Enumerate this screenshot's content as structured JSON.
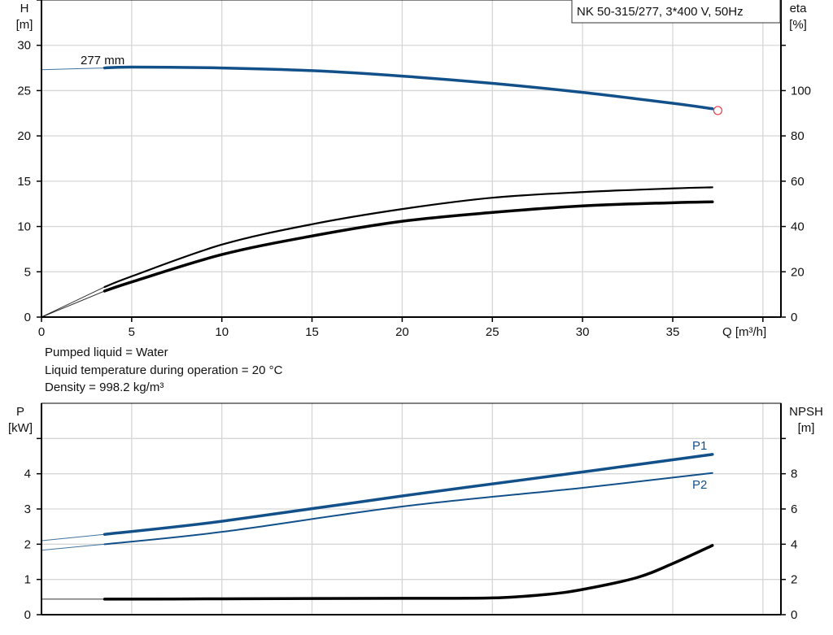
{
  "chart_data": [
    {
      "type": "line",
      "title": "NK 50-315/277, 3*400 V, 50Hz",
      "xlabel": "Q [m³/h]",
      "ylabel": "H",
      "yunit": "[m]",
      "y2label": "eta",
      "y2unit": "[%]",
      "xlim": [
        0,
        41
      ],
      "ylim": [
        0,
        35
      ],
      "y2lim": [
        0,
        140
      ],
      "xticks": [
        "0",
        "5",
        "10",
        "15",
        "20",
        "25",
        "30",
        "35"
      ],
      "yticks": [
        "0",
        "5",
        "10",
        "15",
        "20",
        "25",
        "30"
      ],
      "y2ticks": [
        "0",
        "20",
        "40",
        "60",
        "80",
        "100"
      ],
      "grid": true,
      "operating_range": [
        3.5,
        37.2
      ],
      "annotation": "277 mm",
      "duty_point": {
        "x": 37.5,
        "y": 22.8,
        "color": "#e8404a"
      },
      "series": [
        {
          "axis": "H",
          "color": "#12508a",
          "x": [
            0,
            3.5,
            5,
            10,
            15,
            20,
            25,
            30,
            35,
            37.2
          ],
          "y": [
            27.3,
            27.5,
            27.6,
            27.5,
            27.2,
            26.6,
            25.8,
            24.8,
            23.6,
            23.0
          ]
        },
        {
          "axis": "eta",
          "color": "#000000",
          "x": [
            0,
            3.5,
            5,
            10,
            15,
            20,
            25,
            30,
            35,
            37.2
          ],
          "y": [
            0,
            13.3,
            18,
            32,
            41,
            47.7,
            52.7,
            55.2,
            56.8,
            57.3
          ]
        },
        {
          "axis": "eta",
          "color": "#000000",
          "x": [
            0,
            3.5,
            5,
            10,
            15,
            20,
            25,
            30,
            35,
            37.2
          ],
          "y": [
            0,
            11.5,
            15.5,
            27.6,
            35.8,
            42.3,
            46.2,
            49.1,
            50.5,
            50.9
          ]
        }
      ]
    },
    {
      "type": "line",
      "ylabel": "P",
      "yunit": "[kW]",
      "y2label": "NPSH",
      "y2unit": "[m]",
      "xlim": [
        0,
        41
      ],
      "ylim": [
        0,
        6
      ],
      "y2lim": [
        0,
        12
      ],
      "yticks": [
        "0",
        "1",
        "2",
        "3",
        "4"
      ],
      "y2ticks": [
        "0",
        "2",
        "4",
        "6",
        "8"
      ],
      "grid": true,
      "operating_range": [
        3.5,
        37.2
      ],
      "series": [
        {
          "name": "P1",
          "axis": "P",
          "color": "#12508a",
          "x": [
            0,
            3.5,
            10,
            20,
            30,
            37.2
          ],
          "y": [
            2.1,
            2.28,
            2.65,
            3.37,
            4.05,
            4.55
          ]
        },
        {
          "name": "P2",
          "axis": "P",
          "color": "#12508a",
          "x": [
            0,
            3.5,
            10,
            20,
            30,
            37.2
          ],
          "y": [
            1.83,
            2.0,
            2.35,
            3.07,
            3.6,
            4.02
          ]
        },
        {
          "axis": "NPSH",
          "color": "#000000",
          "x": [
            0,
            3.5,
            10,
            15,
            20,
            25,
            28,
            30,
            33,
            35,
            37.2
          ],
          "y": [
            0.88,
            0.88,
            0.9,
            0.92,
            0.93,
            0.95,
            1.15,
            1.43,
            2.1,
            2.9,
            3.93
          ]
        }
      ]
    }
  ],
  "info": {
    "liquid": "Pumped liquid = Water",
    "temperature": "Liquid temperature during operation = 20 °C",
    "density": "Density = 998.2 kg/m³"
  }
}
